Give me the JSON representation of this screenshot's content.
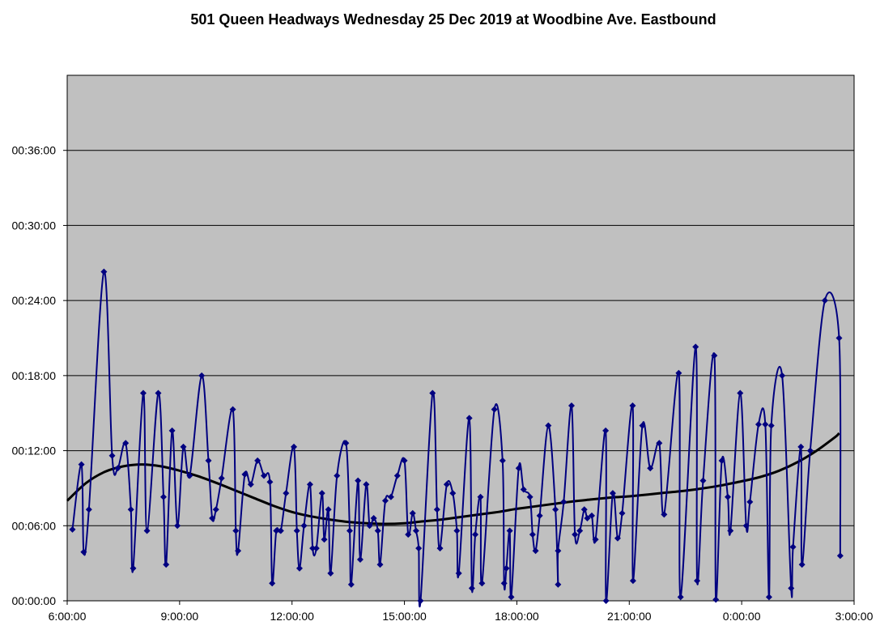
{
  "chart_data": {
    "type": "line",
    "title": "501 Queen Headways Wednesday 25 Dec 2019 at Woodbine Ave. Eastbound",
    "xlabel": "",
    "ylabel": "",
    "x_unit": "hours of service day (6 = 6:00:00, 24 = 0:00:00)",
    "y_unit": "minutes",
    "xlim": [
      6,
      27
    ],
    "ylim": [
      0,
      42
    ],
    "x_ticks": [
      6,
      9,
      12,
      15,
      18,
      21,
      24,
      27
    ],
    "x_tick_labels": [
      "6:00:00",
      "9:00:00",
      "12:00:00",
      "15:00:00",
      "18:00:00",
      "21:00:00",
      "0:00:00",
      "3:00:00"
    ],
    "y_ticks": [
      0,
      6,
      12,
      18,
      24,
      30,
      36
    ],
    "y_tick_labels": [
      "00:00:00",
      "00:06:00",
      "00:12:00",
      "00:18:00",
      "00:24:00",
      "00:30:00",
      "00:36:00"
    ],
    "grid": "horizontal",
    "plot_background": "#c0c0c0",
    "legend": "none",
    "series": [
      {
        "color": "#000080",
        "marker": "diamond",
        "points": [
          [
            6.14,
            5.7
          ],
          [
            6.38,
            10.9
          ],
          [
            6.44,
            3.9
          ],
          [
            6.58,
            7.3
          ],
          [
            6.98,
            26.3
          ],
          [
            7.2,
            11.6
          ],
          [
            7.35,
            10.6
          ],
          [
            7.56,
            12.6
          ],
          [
            7.7,
            7.3
          ],
          [
            7.76,
            2.6
          ],
          [
            8.03,
            16.6
          ],
          [
            8.13,
            5.6
          ],
          [
            8.43,
            16.6
          ],
          [
            8.57,
            8.3
          ],
          [
            8.64,
            2.9
          ],
          [
            8.8,
            13.6
          ],
          [
            8.94,
            6.0
          ],
          [
            9.1,
            12.3
          ],
          [
            9.27,
            10.0
          ],
          [
            9.59,
            18.0
          ],
          [
            9.77,
            11.2
          ],
          [
            9.87,
            6.6
          ],
          [
            9.97,
            7.3
          ],
          [
            10.12,
            9.8
          ],
          [
            10.42,
            15.3
          ],
          [
            10.5,
            5.6
          ],
          [
            10.56,
            4.0
          ],
          [
            10.74,
            10.1
          ],
          [
            10.9,
            9.3
          ],
          [
            11.08,
            11.2
          ],
          [
            11.25,
            10.0
          ],
          [
            11.41,
            9.5
          ],
          [
            11.47,
            1.4
          ],
          [
            11.58,
            5.6
          ],
          [
            11.7,
            5.6
          ],
          [
            11.84,
            8.6
          ],
          [
            12.05,
            12.3
          ],
          [
            12.13,
            5.6
          ],
          [
            12.2,
            2.6
          ],
          [
            12.32,
            6.0
          ],
          [
            12.48,
            9.3
          ],
          [
            12.55,
            4.2
          ],
          [
            12.65,
            4.2
          ],
          [
            12.8,
            8.6
          ],
          [
            12.86,
            4.9
          ],
          [
            12.97,
            7.3
          ],
          [
            13.03,
            2.2
          ],
          [
            13.2,
            10.0
          ],
          [
            13.44,
            12.6
          ],
          [
            13.54,
            5.6
          ],
          [
            13.58,
            1.3
          ],
          [
            13.76,
            9.6
          ],
          [
            13.82,
            3.3
          ],
          [
            13.98,
            9.3
          ],
          [
            14.07,
            6.0
          ],
          [
            14.18,
            6.6
          ],
          [
            14.29,
            5.6
          ],
          [
            14.35,
            2.9
          ],
          [
            14.49,
            8.0
          ],
          [
            14.64,
            8.3
          ],
          [
            14.81,
            10.0
          ],
          [
            15.0,
            11.2
          ],
          [
            15.1,
            5.3
          ],
          [
            15.22,
            7.0
          ],
          [
            15.31,
            5.6
          ],
          [
            15.38,
            4.2
          ],
          [
            15.43,
            0.0
          ],
          [
            15.75,
            16.6
          ],
          [
            15.87,
            7.3
          ],
          [
            15.95,
            4.2
          ],
          [
            16.13,
            9.3
          ],
          [
            16.29,
            8.6
          ],
          [
            16.4,
            5.6
          ],
          [
            16.45,
            2.2
          ],
          [
            16.73,
            14.6
          ],
          [
            16.8,
            1.0
          ],
          [
            16.89,
            5.3
          ],
          [
            17.03,
            8.3
          ],
          [
            17.07,
            1.4
          ],
          [
            17.4,
            15.3
          ],
          [
            17.62,
            11.2
          ],
          [
            17.66,
            1.4
          ],
          [
            17.72,
            2.6
          ],
          [
            17.81,
            5.6
          ],
          [
            17.85,
            0.3
          ],
          [
            18.05,
            10.6
          ],
          [
            18.18,
            8.9
          ],
          [
            18.35,
            8.3
          ],
          [
            18.42,
            5.3
          ],
          [
            18.5,
            4.0
          ],
          [
            18.61,
            6.8
          ],
          [
            18.84,
            14.0
          ],
          [
            19.03,
            7.3
          ],
          [
            19.1,
            1.3
          ],
          [
            19.1,
            4.0
          ],
          [
            19.25,
            7.9
          ],
          [
            19.46,
            15.6
          ],
          [
            19.55,
            5.3
          ],
          [
            19.68,
            5.6
          ],
          [
            19.8,
            7.3
          ],
          [
            19.88,
            6.6
          ],
          [
            20.0,
            6.8
          ],
          [
            20.1,
            4.9
          ],
          [
            20.37,
            13.6
          ],
          [
            20.38,
            0.0
          ],
          [
            20.56,
            8.6
          ],
          [
            20.69,
            5.0
          ],
          [
            20.81,
            7.0
          ],
          [
            21.09,
            15.6
          ],
          [
            21.1,
            1.6
          ],
          [
            21.35,
            14.0
          ],
          [
            21.56,
            10.6
          ],
          [
            21.8,
            12.6
          ],
          [
            21.93,
            6.9
          ],
          [
            22.32,
            18.2
          ],
          [
            22.37,
            0.3
          ],
          [
            22.77,
            20.3
          ],
          [
            22.81,
            1.6
          ],
          [
            22.97,
            9.6
          ],
          [
            23.27,
            19.6
          ],
          [
            23.31,
            0.1
          ],
          [
            23.47,
            11.2
          ],
          [
            23.63,
            8.3
          ],
          [
            23.7,
            5.6
          ],
          [
            23.96,
            16.6
          ],
          [
            24.12,
            6.0
          ],
          [
            24.22,
            7.9
          ],
          [
            24.45,
            14.1
          ],
          [
            24.63,
            14.1
          ],
          [
            24.73,
            0.3
          ],
          [
            24.79,
            14.0
          ],
          [
            25.08,
            18.0
          ],
          [
            25.32,
            1.0
          ],
          [
            25.37,
            4.3
          ],
          [
            25.58,
            12.3
          ],
          [
            25.61,
            2.9
          ],
          [
            25.83,
            12.0
          ],
          [
            26.22,
            24.0
          ],
          [
            26.6,
            21.0
          ],
          [
            26.63,
            3.6
          ]
        ]
      },
      {
        "color": "#000000",
        "type": "trendline",
        "points": [
          [
            6.0,
            8.0
          ],
          [
            6.5,
            9.4
          ],
          [
            7.0,
            10.3
          ],
          [
            7.5,
            10.75
          ],
          [
            8.0,
            10.9
          ],
          [
            8.5,
            10.75
          ],
          [
            9.0,
            10.4
          ],
          [
            9.5,
            9.95
          ],
          [
            10.0,
            9.4
          ],
          [
            10.5,
            8.8
          ],
          [
            11.0,
            8.2
          ],
          [
            11.5,
            7.6
          ],
          [
            12.0,
            7.1
          ],
          [
            12.5,
            6.75
          ],
          [
            13.0,
            6.5
          ],
          [
            13.5,
            6.3
          ],
          [
            14.0,
            6.2
          ],
          [
            14.5,
            6.15
          ],
          [
            15.0,
            6.2
          ],
          [
            15.5,
            6.35
          ],
          [
            16.0,
            6.5
          ],
          [
            16.5,
            6.7
          ],
          [
            17.0,
            6.9
          ],
          [
            17.5,
            7.1
          ],
          [
            18.0,
            7.35
          ],
          [
            18.5,
            7.55
          ],
          [
            19.0,
            7.75
          ],
          [
            19.5,
            7.95
          ],
          [
            20.0,
            8.1
          ],
          [
            20.5,
            8.25
          ],
          [
            21.0,
            8.35
          ],
          [
            21.5,
            8.5
          ],
          [
            22.0,
            8.65
          ],
          [
            22.5,
            8.8
          ],
          [
            23.0,
            9.0
          ],
          [
            23.5,
            9.25
          ],
          [
            24.0,
            9.55
          ],
          [
            24.5,
            9.9
          ],
          [
            25.0,
            10.4
          ],
          [
            25.5,
            11.1
          ],
          [
            26.0,
            12.0
          ],
          [
            26.5,
            13.1
          ],
          [
            26.6,
            13.4
          ]
        ]
      }
    ]
  }
}
